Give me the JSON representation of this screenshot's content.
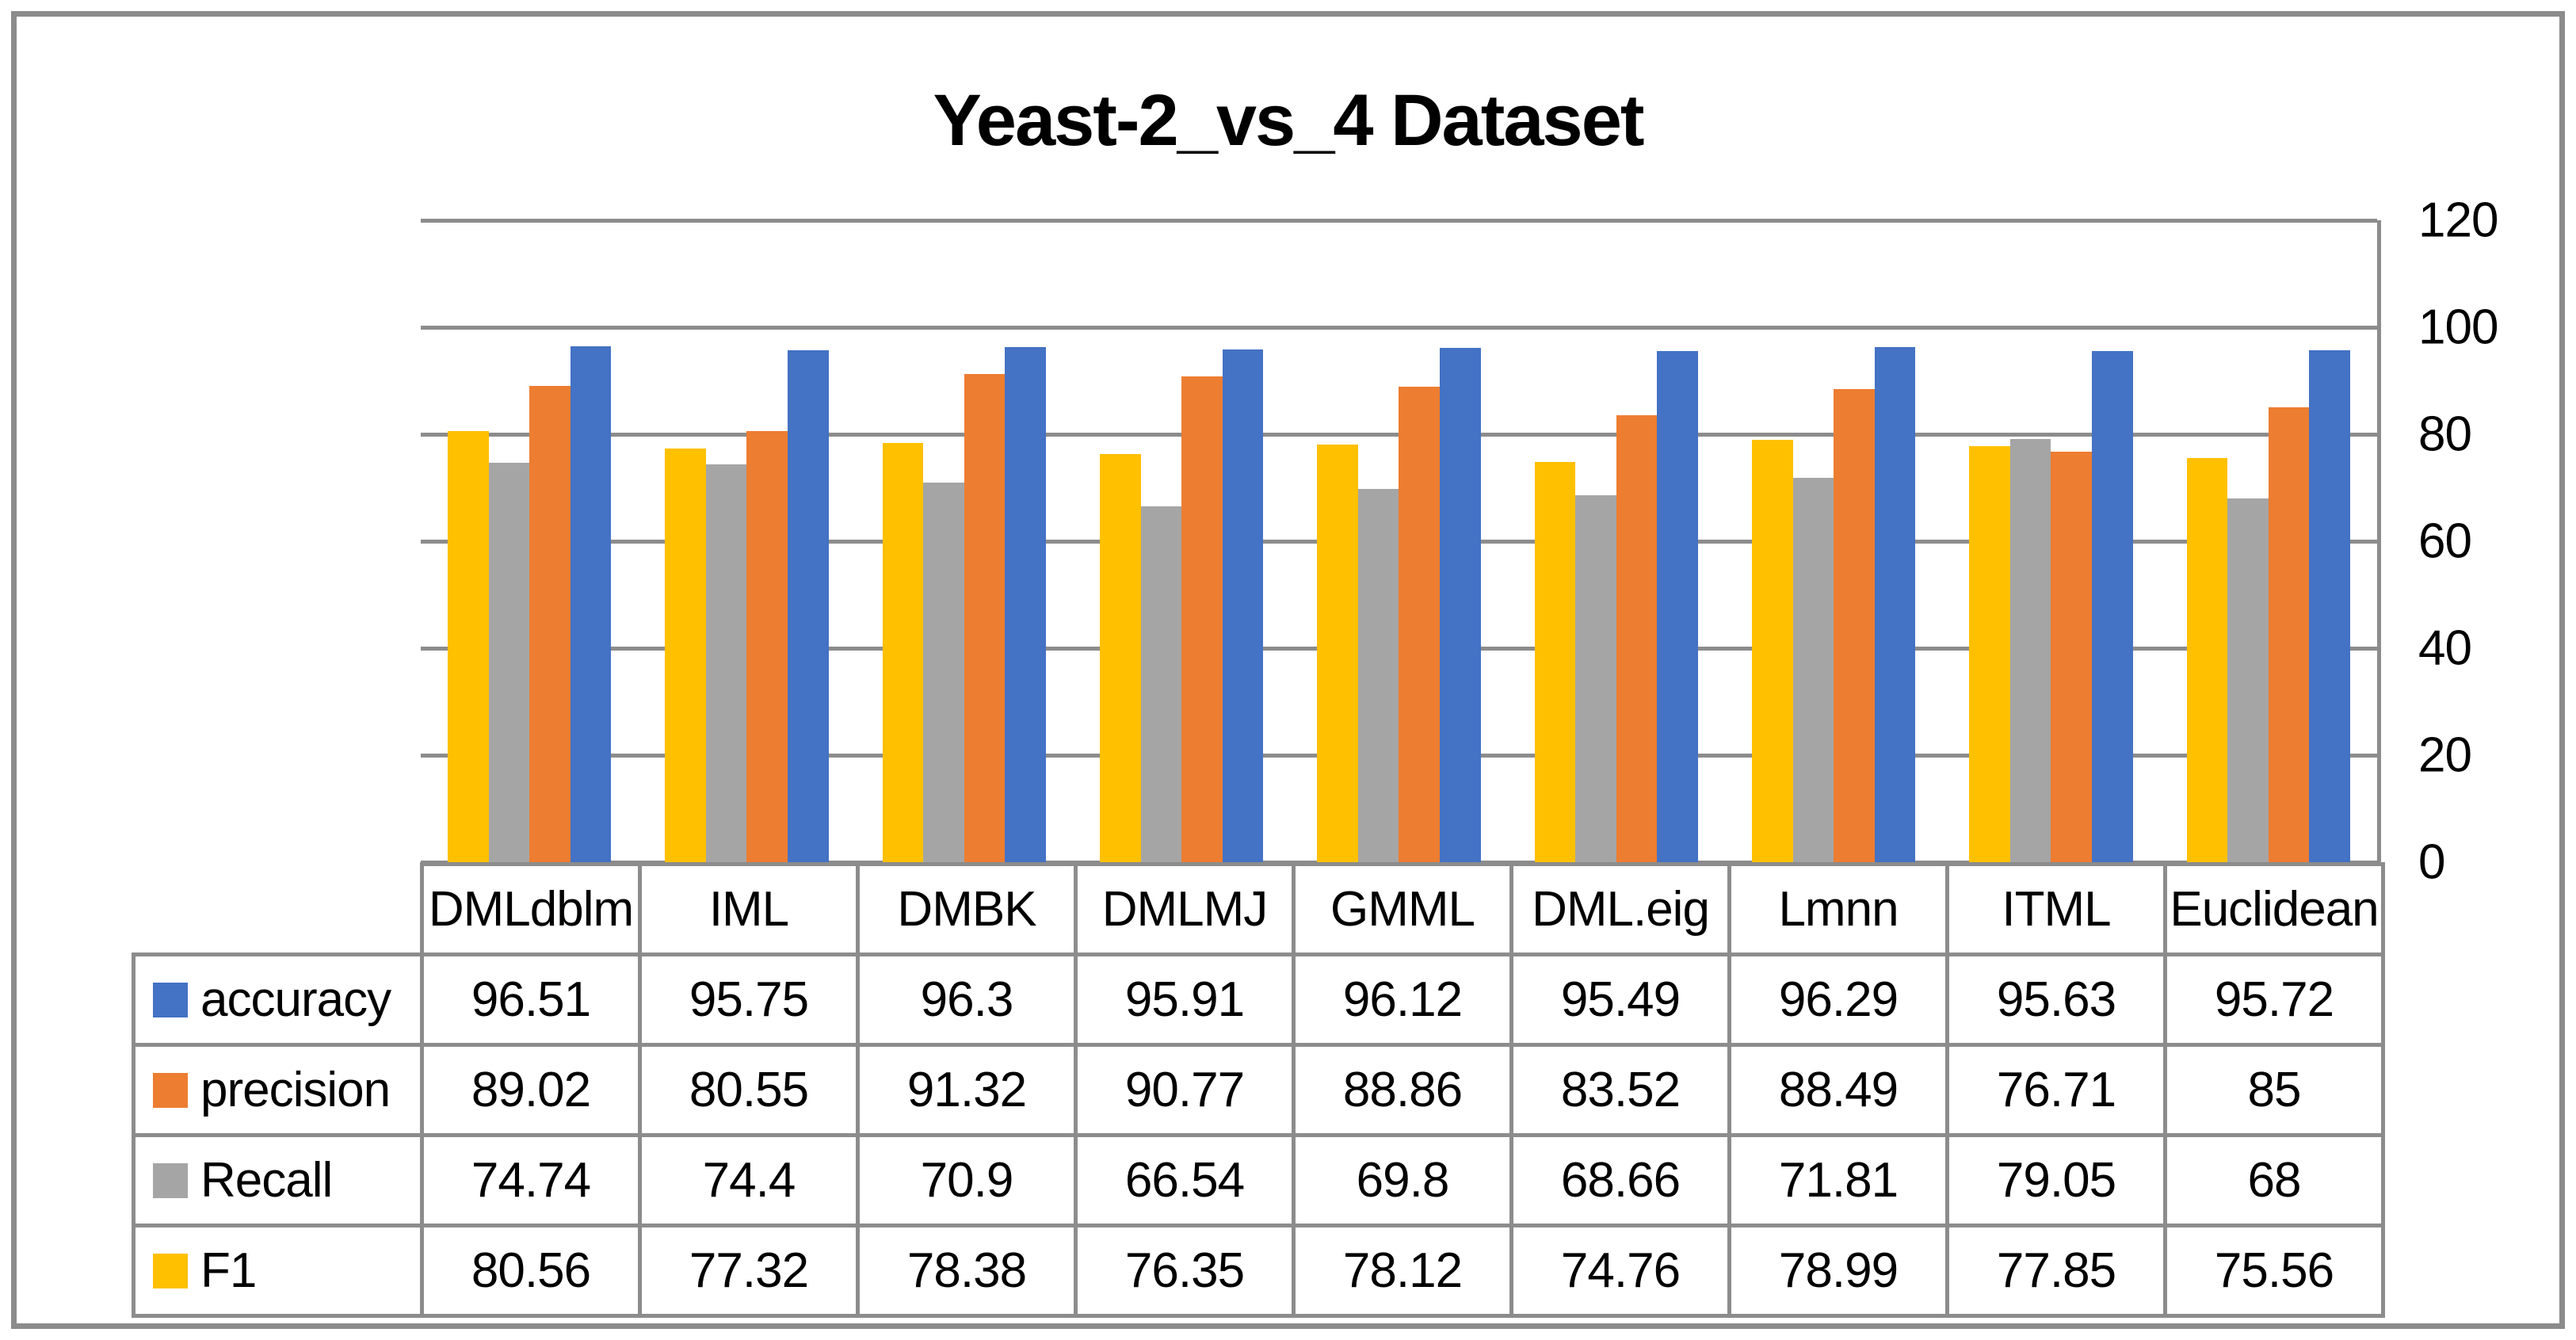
{
  "chart_data": {
    "type": "bar",
    "title": "Yeast-2_vs_4 Dataset",
    "categories": [
      "DMLdblm",
      "IML",
      "DMBK",
      "DMLMJ",
      "GMML",
      "DML.eig",
      "Lmnn",
      "ITML",
      "Euclidean"
    ],
    "series": [
      {
        "name": "accuracy",
        "color": "#4472C4",
        "values": [
          96.51,
          95.75,
          96.3,
          95.91,
          96.12,
          95.49,
          96.29,
          95.63,
          95.72
        ]
      },
      {
        "name": "precision",
        "color": "#ED7D31",
        "values": [
          89.02,
          80.55,
          91.32,
          90.77,
          88.86,
          83.52,
          88.49,
          76.71,
          85
        ]
      },
      {
        "name": "Recall",
        "color": "#A5A5A5",
        "values": [
          74.74,
          74.4,
          70.9,
          66.54,
          69.8,
          68.66,
          71.81,
          79.05,
          68
        ]
      },
      {
        "name": "F1",
        "color": "#FFC000",
        "values": [
          80.56,
          77.32,
          78.38,
          76.35,
          78.12,
          74.76,
          78.99,
          77.85,
          75.56
        ]
      }
    ],
    "bar_order_left_to_right": [
      "F1",
      "Recall",
      "precision",
      "accuracy"
    ],
    "y_axis": {
      "min": 0,
      "max": 120,
      "step": 20,
      "ticks": [
        0,
        20,
        40,
        60,
        80,
        100,
        120
      ],
      "side": "right"
    },
    "grid": true,
    "legend_position": "table-rows-left",
    "data_table_shown": true
  },
  "style": {
    "background": "#FFFFFF",
    "grid_color": "#8C8C8C",
    "border_color": "#8C8C8C",
    "text_color": "#000000"
  }
}
